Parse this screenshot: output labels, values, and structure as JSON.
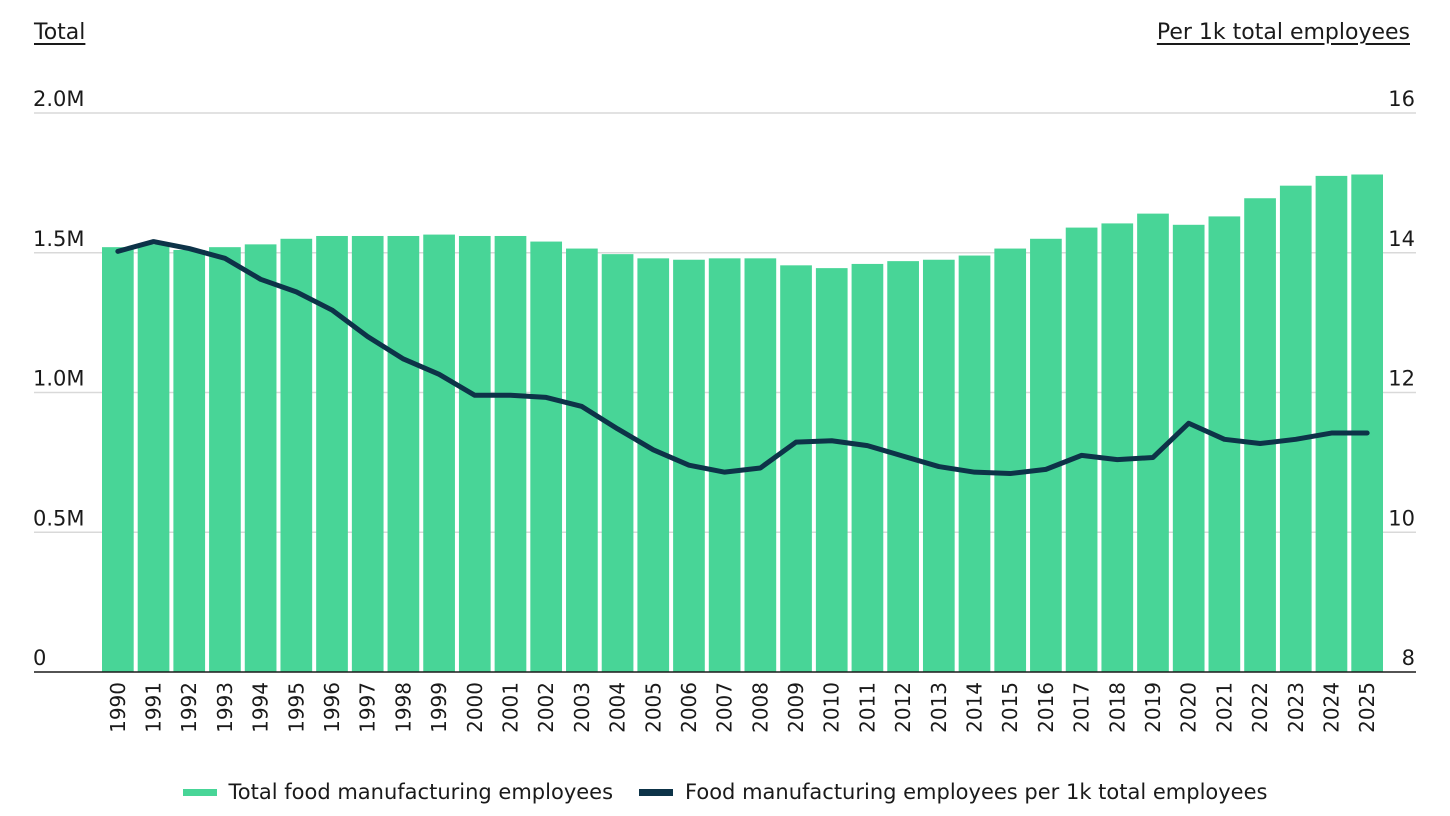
{
  "chart_data": {
    "type": "bar+line",
    "left_axis_title": "Total",
    "right_axis_title": "Per 1k total employees",
    "left_ticks": [
      "0",
      "0.5M",
      "1.0M",
      "1.5M",
      "2.0M"
    ],
    "left_tick_values": [
      0,
      0.5,
      1.0,
      1.5,
      2.0
    ],
    "right_ticks": [
      "8",
      "10",
      "12",
      "14",
      "16"
    ],
    "right_tick_values": [
      8,
      10,
      12,
      14,
      16
    ],
    "ylim_left": [
      0,
      2.0
    ],
    "ylim_right": [
      8,
      16
    ],
    "grid": true,
    "legend_position": "bottom",
    "categories": [
      "1990",
      "1991",
      "1992",
      "1993",
      "1994",
      "1995",
      "1996",
      "1997",
      "1998",
      "1999",
      "2000",
      "2001",
      "2002",
      "2003",
      "2004",
      "2005",
      "2006",
      "2007",
      "2008",
      "2009",
      "2010",
      "2011",
      "2012",
      "2013",
      "2014",
      "2015",
      "2016",
      "2017",
      "2018",
      "2019",
      "2020",
      "2021",
      "2022",
      "2023",
      "2024",
      "2025"
    ],
    "series": [
      {
        "name": "Total food manufacturing employees",
        "type": "bar",
        "axis": "left",
        "unit": "millions",
        "color": "#48D597",
        "values": [
          1.52,
          1.53,
          1.51,
          1.52,
          1.53,
          1.55,
          1.56,
          1.56,
          1.56,
          1.565,
          1.56,
          1.56,
          1.54,
          1.515,
          1.495,
          1.48,
          1.475,
          1.48,
          1.48,
          1.455,
          1.445,
          1.46,
          1.47,
          1.475,
          1.49,
          1.515,
          1.55,
          1.59,
          1.605,
          1.64,
          1.6,
          1.63,
          1.695,
          1.74,
          1.775,
          1.78
        ]
      },
      {
        "name": "Food manufacturing employees per 1k total employees",
        "type": "line",
        "axis": "right",
        "color": "#0D3348",
        "values": [
          14.02,
          14.16,
          14.06,
          13.92,
          13.62,
          13.44,
          13.18,
          12.8,
          12.48,
          12.26,
          11.96,
          11.96,
          11.93,
          11.8,
          11.48,
          11.18,
          10.96,
          10.86,
          10.92,
          11.29,
          11.31,
          11.24,
          11.09,
          10.94,
          10.86,
          10.84,
          10.9,
          11.1,
          11.04,
          11.07,
          11.56,
          11.33,
          11.27,
          11.33,
          11.42,
          11.42
        ]
      }
    ]
  },
  "legend": {
    "bar_label": "Total food manufacturing employees",
    "line_label": "Food manufacturing employees per 1k total employees"
  }
}
